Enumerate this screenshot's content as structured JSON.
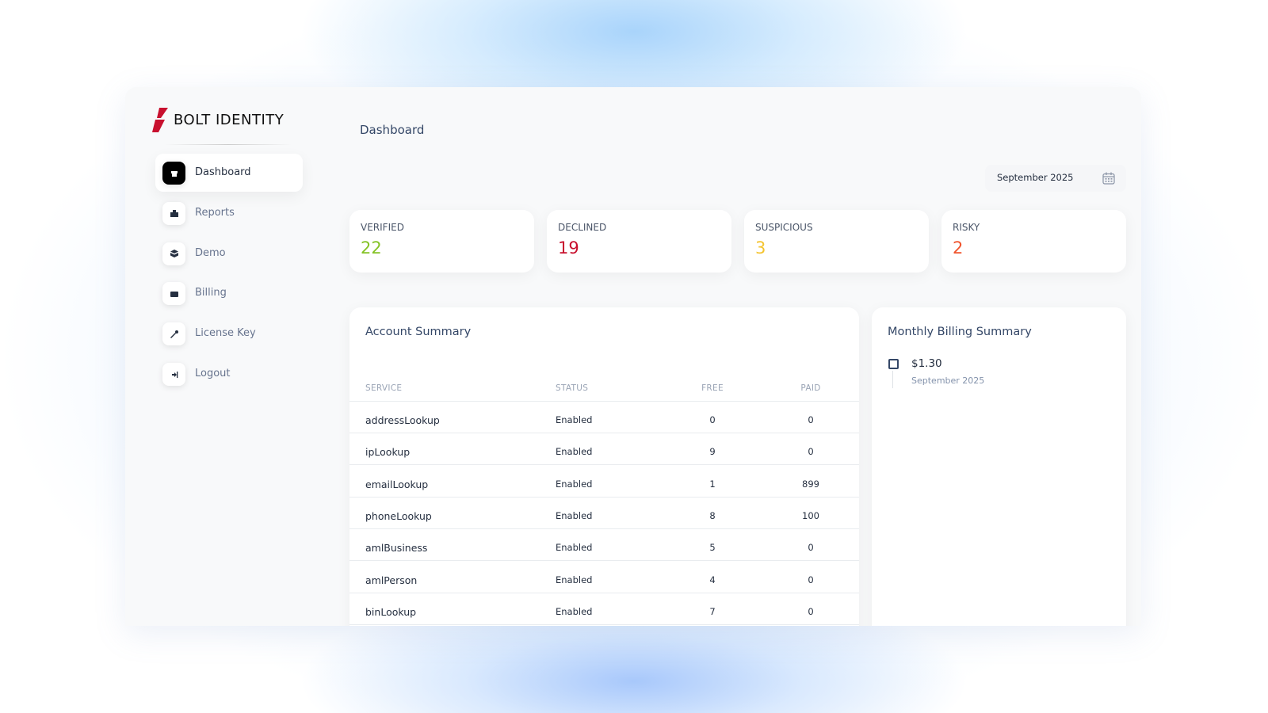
{
  "brand": {
    "logo_text": "BOLT IDENTITY"
  },
  "nav": [
    {
      "label": "Dashboard",
      "active": true
    },
    {
      "label": "Reports",
      "active": false
    },
    {
      "label": "Demo",
      "active": false
    },
    {
      "label": "Billing",
      "active": false
    },
    {
      "label": "License Key",
      "active": false
    },
    {
      "label": "Logout",
      "active": false
    }
  ],
  "header": {
    "title": "Dashboard",
    "date_picker": "September 2025"
  },
  "stats": [
    {
      "label": "VERIFIED",
      "value": 22,
      "color": "#84c225"
    },
    {
      "label": "DECLINED",
      "value": 19,
      "color": "#c8102e"
    },
    {
      "label": "SUSPICIOUS",
      "value": 3,
      "color": "#f4c430"
    },
    {
      "label": "RISKY",
      "value": 2,
      "color": "#f0542d"
    }
  ],
  "account_summary": {
    "title": "Account Summary",
    "columns": [
      "SERVICE",
      "STATUS",
      "FREE",
      "PAID"
    ],
    "rows": [
      [
        "addressLookup",
        "Enabled",
        0,
        0
      ],
      [
        "ipLookup",
        "Enabled",
        9,
        0
      ],
      [
        "emailLookup",
        "Enabled",
        1,
        899
      ],
      [
        "phoneLookup",
        "Enabled",
        8,
        100
      ],
      [
        "amlBusiness",
        "Enabled",
        5,
        0
      ],
      [
        "amlPerson",
        "Enabled",
        4,
        0
      ],
      [
        "binLookup",
        "Enabled",
        7,
        0
      ]
    ]
  },
  "billing": {
    "title": "Monthly Billing Summary",
    "entries": [
      {
        "amount": "$1.30",
        "period": "September 2025"
      }
    ]
  }
}
